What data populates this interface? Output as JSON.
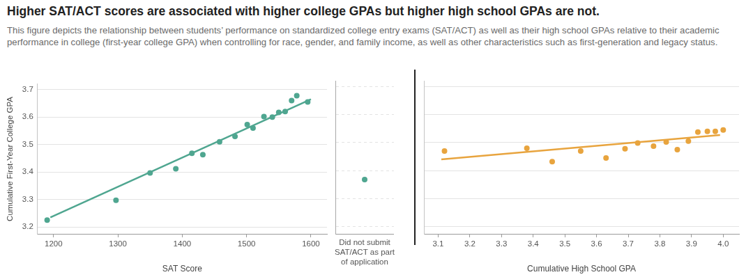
{
  "title": "Higher SAT/ACT scores are associated with higher college GPAs but higher high school GPAs are not.",
  "subtitle": "This figure depicts the relationship between students’ performance on standardized college entry exams (SAT/ACT) as well as their high school GPAs relative to their academic performance in college (first-year college GPA) when controlling for race, gender, and family income, as well as other characteristics such as first-generation and legacy status.",
  "chart_data": [
    {
      "type": "scatter",
      "ylabel": "Cumulative First-Year College GPA",
      "xlabel": "SAT Score",
      "xlim": [
        1175,
        1625
      ],
      "xticks": [
        1200,
        1300,
        1400,
        1500,
        1600
      ],
      "ylim": [
        3.175,
        3.72
      ],
      "yticks": [
        3.2,
        3.3,
        3.4,
        3.5,
        3.6,
        3.7
      ],
      "grid": true,
      "series": [
        {
          "type": "scatter",
          "marker": "circle",
          "color": "#4fa690",
          "x": [
            1190,
            1297,
            1350,
            1390,
            1415,
            1432,
            1458,
            1482,
            1501,
            1510,
            1527,
            1540,
            1550,
            1560,
            1570,
            1578,
            1595
          ],
          "values": [
            3.225,
            3.297,
            3.397,
            3.412,
            3.468,
            3.463,
            3.51,
            3.53,
            3.573,
            3.56,
            3.602,
            3.6,
            3.617,
            3.62,
            3.66,
            3.678,
            3.655
          ]
        },
        {
          "type": "line",
          "line_style": "solid",
          "color": "#4fa690",
          "x": [
            1195,
            1600
          ],
          "values": [
            3.235,
            3.665
          ]
        }
      ]
    },
    {
      "type": "scatter",
      "categories": [
        [
          "Did not submit",
          "SAT/ACT as part",
          "of application"
        ]
      ],
      "values": [
        3.368
      ],
      "color": "#4fa690",
      "marker": "circle",
      "ylim": [
        3.175,
        3.72
      ],
      "yticks": [
        3.2,
        3.3,
        3.4,
        3.5,
        3.6,
        3.7
      ],
      "grid": true,
      "tick_labels": "x"
    },
    {
      "type": "scatter",
      "xlabel": "Cumulative High School GPA",
      "xlim": [
        3.055,
        4.05
      ],
      "xticks": [
        3.1,
        3.2,
        3.3,
        3.4,
        3.5,
        3.6,
        3.7,
        3.8,
        3.9,
        {
          "value": 4,
          "label": "4.0"
        }
      ],
      "ylim": [
        3.175,
        3.72
      ],
      "yticks": [
        3.2,
        3.3,
        3.4,
        3.5,
        3.6,
        3.7
      ],
      "grid": true,
      "tick_labels": "x",
      "series": [
        {
          "type": "scatter",
          "marker": "circle",
          "color": "#e8a43e",
          "x": [
            3.12,
            3.38,
            3.46,
            3.55,
            3.63,
            3.69,
            3.73,
            3.78,
            3.82,
            3.855,
            3.89,
            3.92,
            3.95,
            3.975,
            4.0
          ],
          "values": [
            3.47,
            3.48,
            3.432,
            3.47,
            3.445,
            3.478,
            3.498,
            3.487,
            3.502,
            3.475,
            3.505,
            3.537,
            3.54,
            3.54,
            3.545
          ]
        },
        {
          "type": "line",
          "line_style": "solid",
          "color": "#e8a43e",
          "x": [
            3.11,
            3.99
          ],
          "values": [
            3.44,
            3.527
          ]
        }
      ]
    }
  ]
}
